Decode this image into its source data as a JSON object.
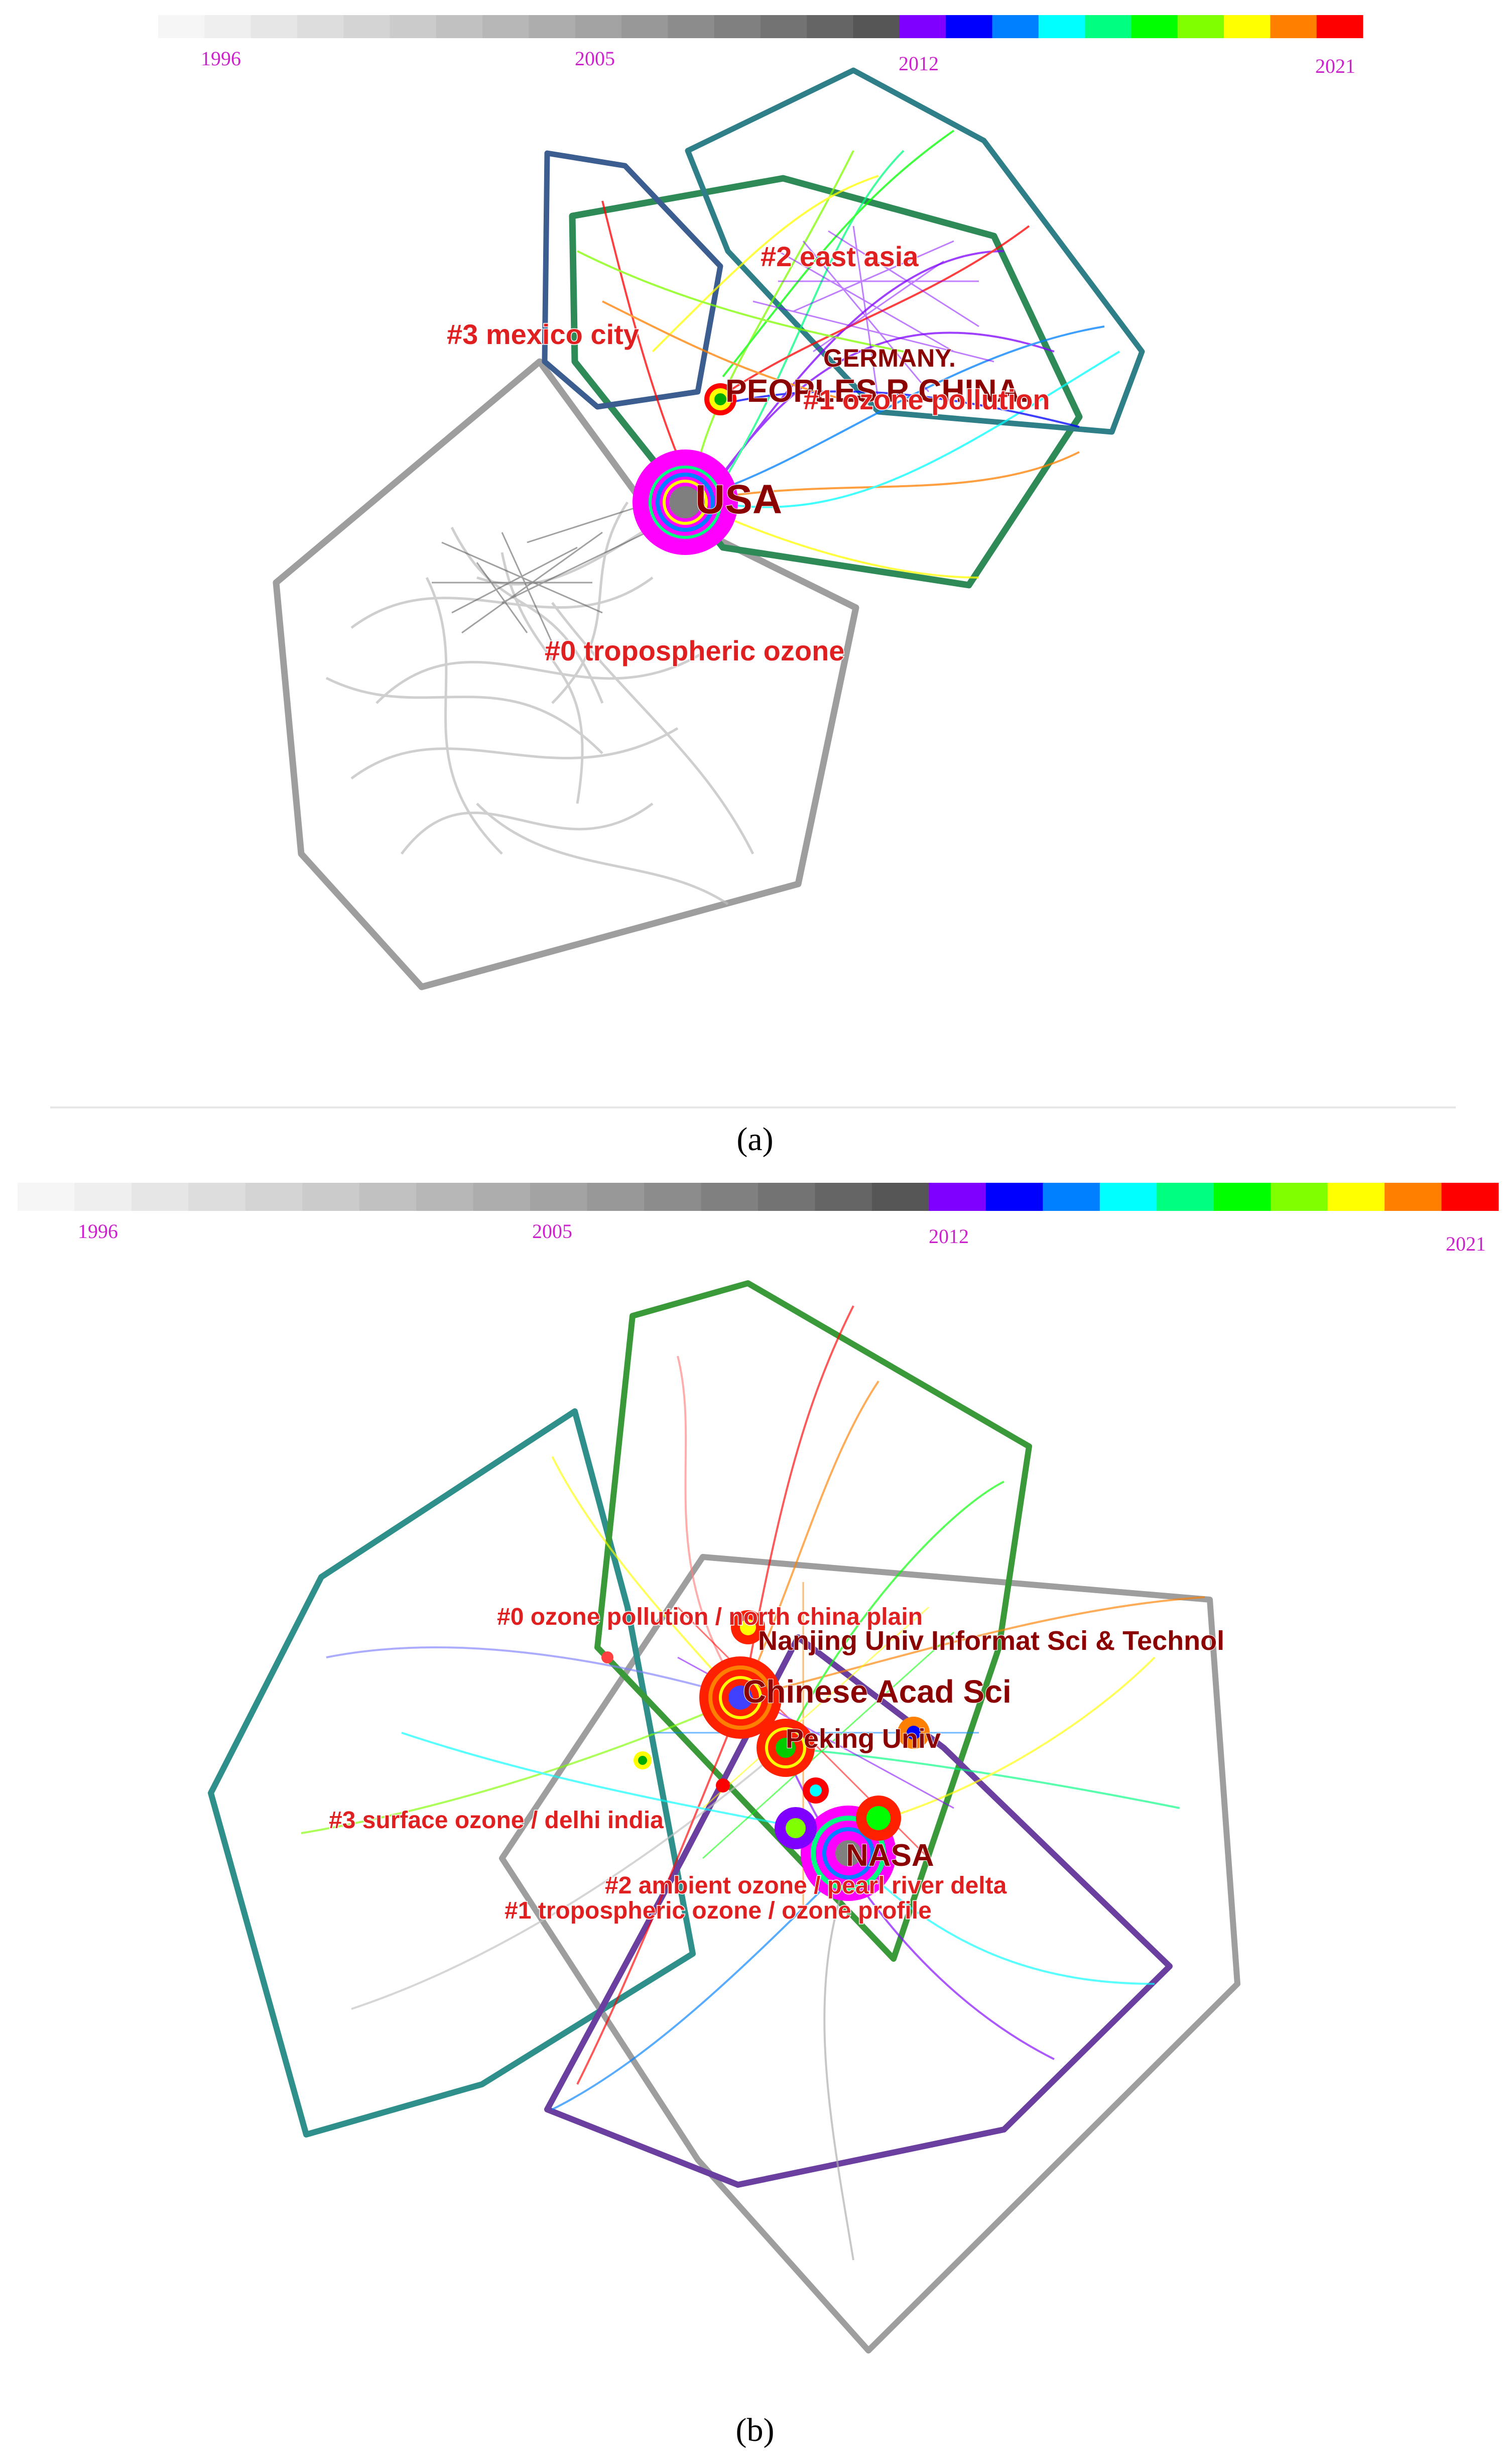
{
  "panel_a": {
    "caption": "(a)",
    "legend": {
      "years": [
        "1996",
        "2005",
        "2012",
        "2021"
      ],
      "colors": [
        "#f6f6f6",
        "#efefef",
        "#e6e6e6",
        "#dddddd",
        "#d4d4d4",
        "#cbcbcb",
        "#c1c1c1",
        "#b7b7b7",
        "#adadad",
        "#a3a3a3",
        "#989898",
        "#8c8c8c",
        "#808080",
        "#737373",
        "#656565",
        "#565656",
        "#8000ff",
        "#0000ff",
        "#0080ff",
        "#00ffff",
        "#00ff80",
        "#00ff00",
        "#80ff00",
        "#ffff00",
        "#ff8000",
        "#ff0000"
      ]
    },
    "clusters": [
      {
        "label": "#0 tropospheric ozone",
        "color": "#9e9e9e"
      },
      {
        "label": "#1 ozone pollution",
        "color": "#2e8b57"
      },
      {
        "label": "#2 east asia",
        "color": "#2f7f88"
      },
      {
        "label": "#3 mexico city",
        "color": "#3b5d8f"
      }
    ],
    "nodes": [
      {
        "label": "USA"
      },
      {
        "label": "PEOPLES R CHINA."
      },
      {
        "label": "GERMANY."
      }
    ]
  },
  "panel_b": {
    "caption": "(b)",
    "legend": {
      "years": [
        "1996",
        "2005",
        "2012",
        "2021"
      ],
      "colors": [
        "#f6f6f6",
        "#efefef",
        "#e6e6e6",
        "#dddddd",
        "#d4d4d4",
        "#cbcbcb",
        "#c1c1c1",
        "#b7b7b7",
        "#adadad",
        "#a3a3a3",
        "#989898",
        "#8c8c8c",
        "#808080",
        "#737373",
        "#656565",
        "#565656",
        "#8000ff",
        "#0000ff",
        "#0080ff",
        "#00ffff",
        "#00ff80",
        "#00ff00",
        "#80ff00",
        "#ffff00",
        "#ff8000",
        "#ff0000"
      ]
    },
    "clusters": [
      {
        "label": "#0 ozone pollution / north china plain",
        "color": "#3a9a3a"
      },
      {
        "label": "#1 tropospheric ozone / ozone profile",
        "color": "#9e9e9e"
      },
      {
        "label": "#2 ambient ozone / pearl river delta",
        "color": "#6a3fa0"
      },
      {
        "label": "#3 surface ozone / delhi india",
        "color": "#2f8f8a"
      }
    ],
    "nodes": [
      {
        "label": "Nanjing Univ Informat Sci & Technol"
      },
      {
        "label": "Chinese Acad Sci"
      },
      {
        "label": "Peking Univ"
      },
      {
        "label": "NASA"
      }
    ]
  }
}
